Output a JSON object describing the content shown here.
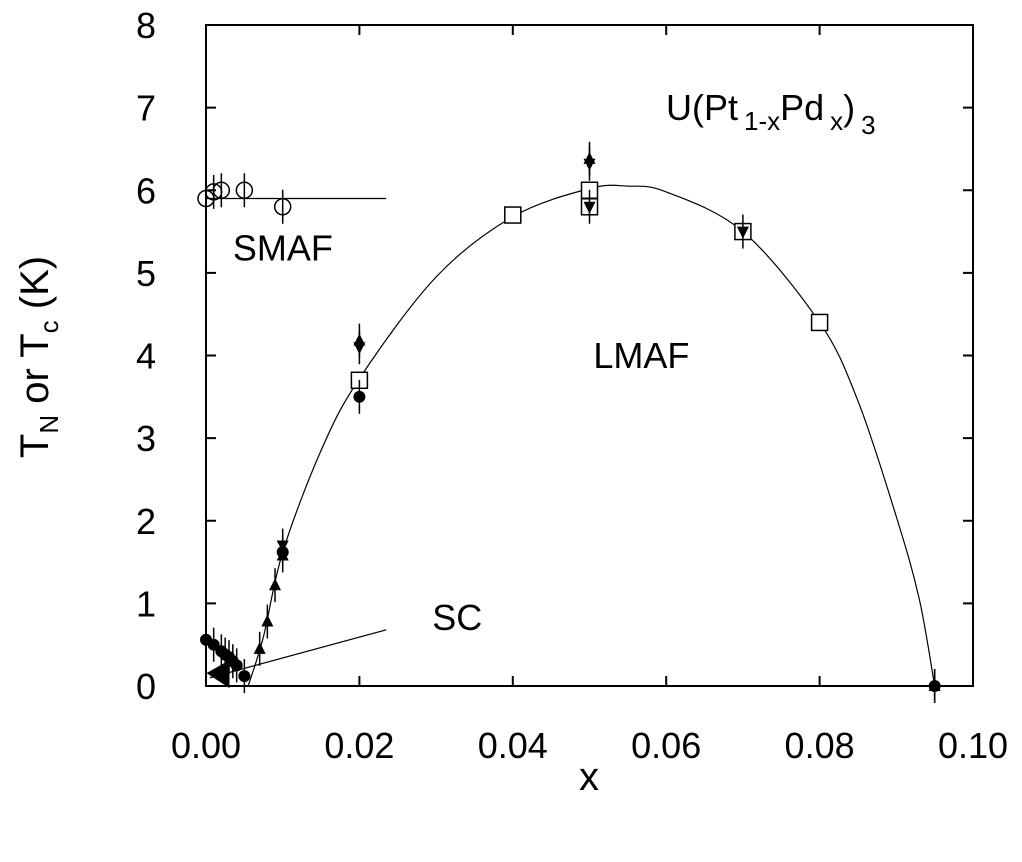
{
  "chart_data": {
    "type": "scatter",
    "title": "",
    "xlabel": "x",
    "ylabel": {
      "main": "T",
      "sub_n": "N",
      "mid": " or ",
      "main2": "T",
      "sub_c": "c",
      "unit": " (K)"
    },
    "xlim": [
      0.0,
      0.1
    ],
    "ylim": [
      0,
      8
    ],
    "x_ticks": [
      {
        "value": 0.0,
        "label": "0.00"
      },
      {
        "value": 0.02,
        "label": "0.02"
      },
      {
        "value": 0.04,
        "label": "0.04"
      },
      {
        "value": 0.06,
        "label": "0.06"
      },
      {
        "value": 0.08,
        "label": "0.08"
      },
      {
        "value": 0.1,
        "label": "0.10"
      }
    ],
    "y_ticks": [
      {
        "value": 0,
        "label": "0"
      },
      {
        "value": 1,
        "label": "1"
      },
      {
        "value": 2,
        "label": "2"
      },
      {
        "value": 3,
        "label": "3"
      },
      {
        "value": 4,
        "label": "4"
      },
      {
        "value": 5,
        "label": "5"
      },
      {
        "value": 6,
        "label": "6"
      },
      {
        "value": 7,
        "label": "7"
      },
      {
        "value": 8,
        "label": "8"
      }
    ],
    "compound": {
      "pre": "U(Pt",
      "sub1": "1-x",
      "mid": "Pd",
      "sub2": "x",
      "post": ")",
      "sub3": "3"
    },
    "regions": [
      {
        "label": "SMAF",
        "x": 0.0035,
        "y": 5.15
      },
      {
        "label": "LMAF",
        "x": 0.0505,
        "y": 3.85
      },
      {
        "label": "SC",
        "x": 0.0295,
        "y": 0.68
      }
    ],
    "series": [
      {
        "marker": "open-circle",
        "points": [
          [
            0.0,
            5.9
          ],
          [
            0.001,
            5.98
          ],
          [
            0.002,
            6.0
          ],
          [
            0.005,
            6.0
          ],
          [
            0.01,
            5.8
          ]
        ],
        "errorbars": true
      },
      {
        "marker": "open-square",
        "points": [
          [
            0.02,
            3.7
          ],
          [
            0.04,
            5.7
          ],
          [
            0.05,
            6.0
          ],
          [
            0.05,
            5.8
          ],
          [
            0.07,
            5.5
          ],
          [
            0.08,
            4.4
          ]
        ],
        "errorbars": false
      },
      {
        "marker": "filled-circle",
        "points": [
          [
            0.0,
            0.56
          ],
          [
            0.001,
            0.5
          ],
          [
            0.002,
            0.42
          ],
          [
            0.0025,
            0.38
          ],
          [
            0.003,
            0.35
          ],
          [
            0.0035,
            0.3
          ],
          [
            0.004,
            0.25
          ],
          [
            0.005,
            0.12
          ],
          [
            0.01,
            1.62
          ],
          [
            0.02,
            3.5
          ],
          [
            0.095,
            0.0
          ]
        ],
        "errorbars": true
      },
      {
        "marker": "filled-triangle-up",
        "points": [
          [
            0.007,
            0.45
          ],
          [
            0.008,
            0.78
          ],
          [
            0.009,
            1.22
          ],
          [
            0.01,
            1.58
          ],
          [
            0.02,
            4.18
          ],
          [
            0.05,
            6.38
          ],
          [
            0.095,
            0.0
          ]
        ],
        "errorbars": true
      },
      {
        "marker": "filled-triangle-down",
        "points": [
          [
            0.01,
            1.7
          ],
          [
            0.02,
            4.1
          ],
          [
            0.05,
            6.32
          ],
          [
            0.05,
            5.8
          ],
          [
            0.07,
            5.5
          ]
        ],
        "errorbars": true
      },
      {
        "marker": "filled-triangle-left",
        "points": [
          [
            0.0015,
            0.12
          ]
        ],
        "errorbars": false
      }
    ],
    "lines": [
      {
        "name": "smaf-line",
        "kind": "straight",
        "points": [
          [
            0.0,
            5.9
          ],
          [
            0.0235,
            5.9
          ]
        ]
      },
      {
        "name": "sc-pointer",
        "kind": "straight",
        "points": [
          [
            0.0005,
            0.1
          ],
          [
            0.0235,
            0.68
          ]
        ]
      },
      {
        "name": "lmaf-boundary",
        "kind": "smooth",
        "points": [
          [
            0.0055,
            0.0
          ],
          [
            0.0075,
            0.6
          ],
          [
            0.01,
            1.62
          ],
          [
            0.015,
            2.85
          ],
          [
            0.02,
            3.72
          ],
          [
            0.03,
            4.95
          ],
          [
            0.04,
            5.68
          ],
          [
            0.05,
            6.02
          ],
          [
            0.055,
            6.05
          ],
          [
            0.06,
            5.98
          ],
          [
            0.07,
            5.5
          ],
          [
            0.08,
            4.4
          ],
          [
            0.085,
            3.45
          ],
          [
            0.09,
            2.05
          ],
          [
            0.093,
            1.05
          ],
          [
            0.095,
            0.0
          ]
        ]
      }
    ],
    "grid": false,
    "legend": "none"
  }
}
